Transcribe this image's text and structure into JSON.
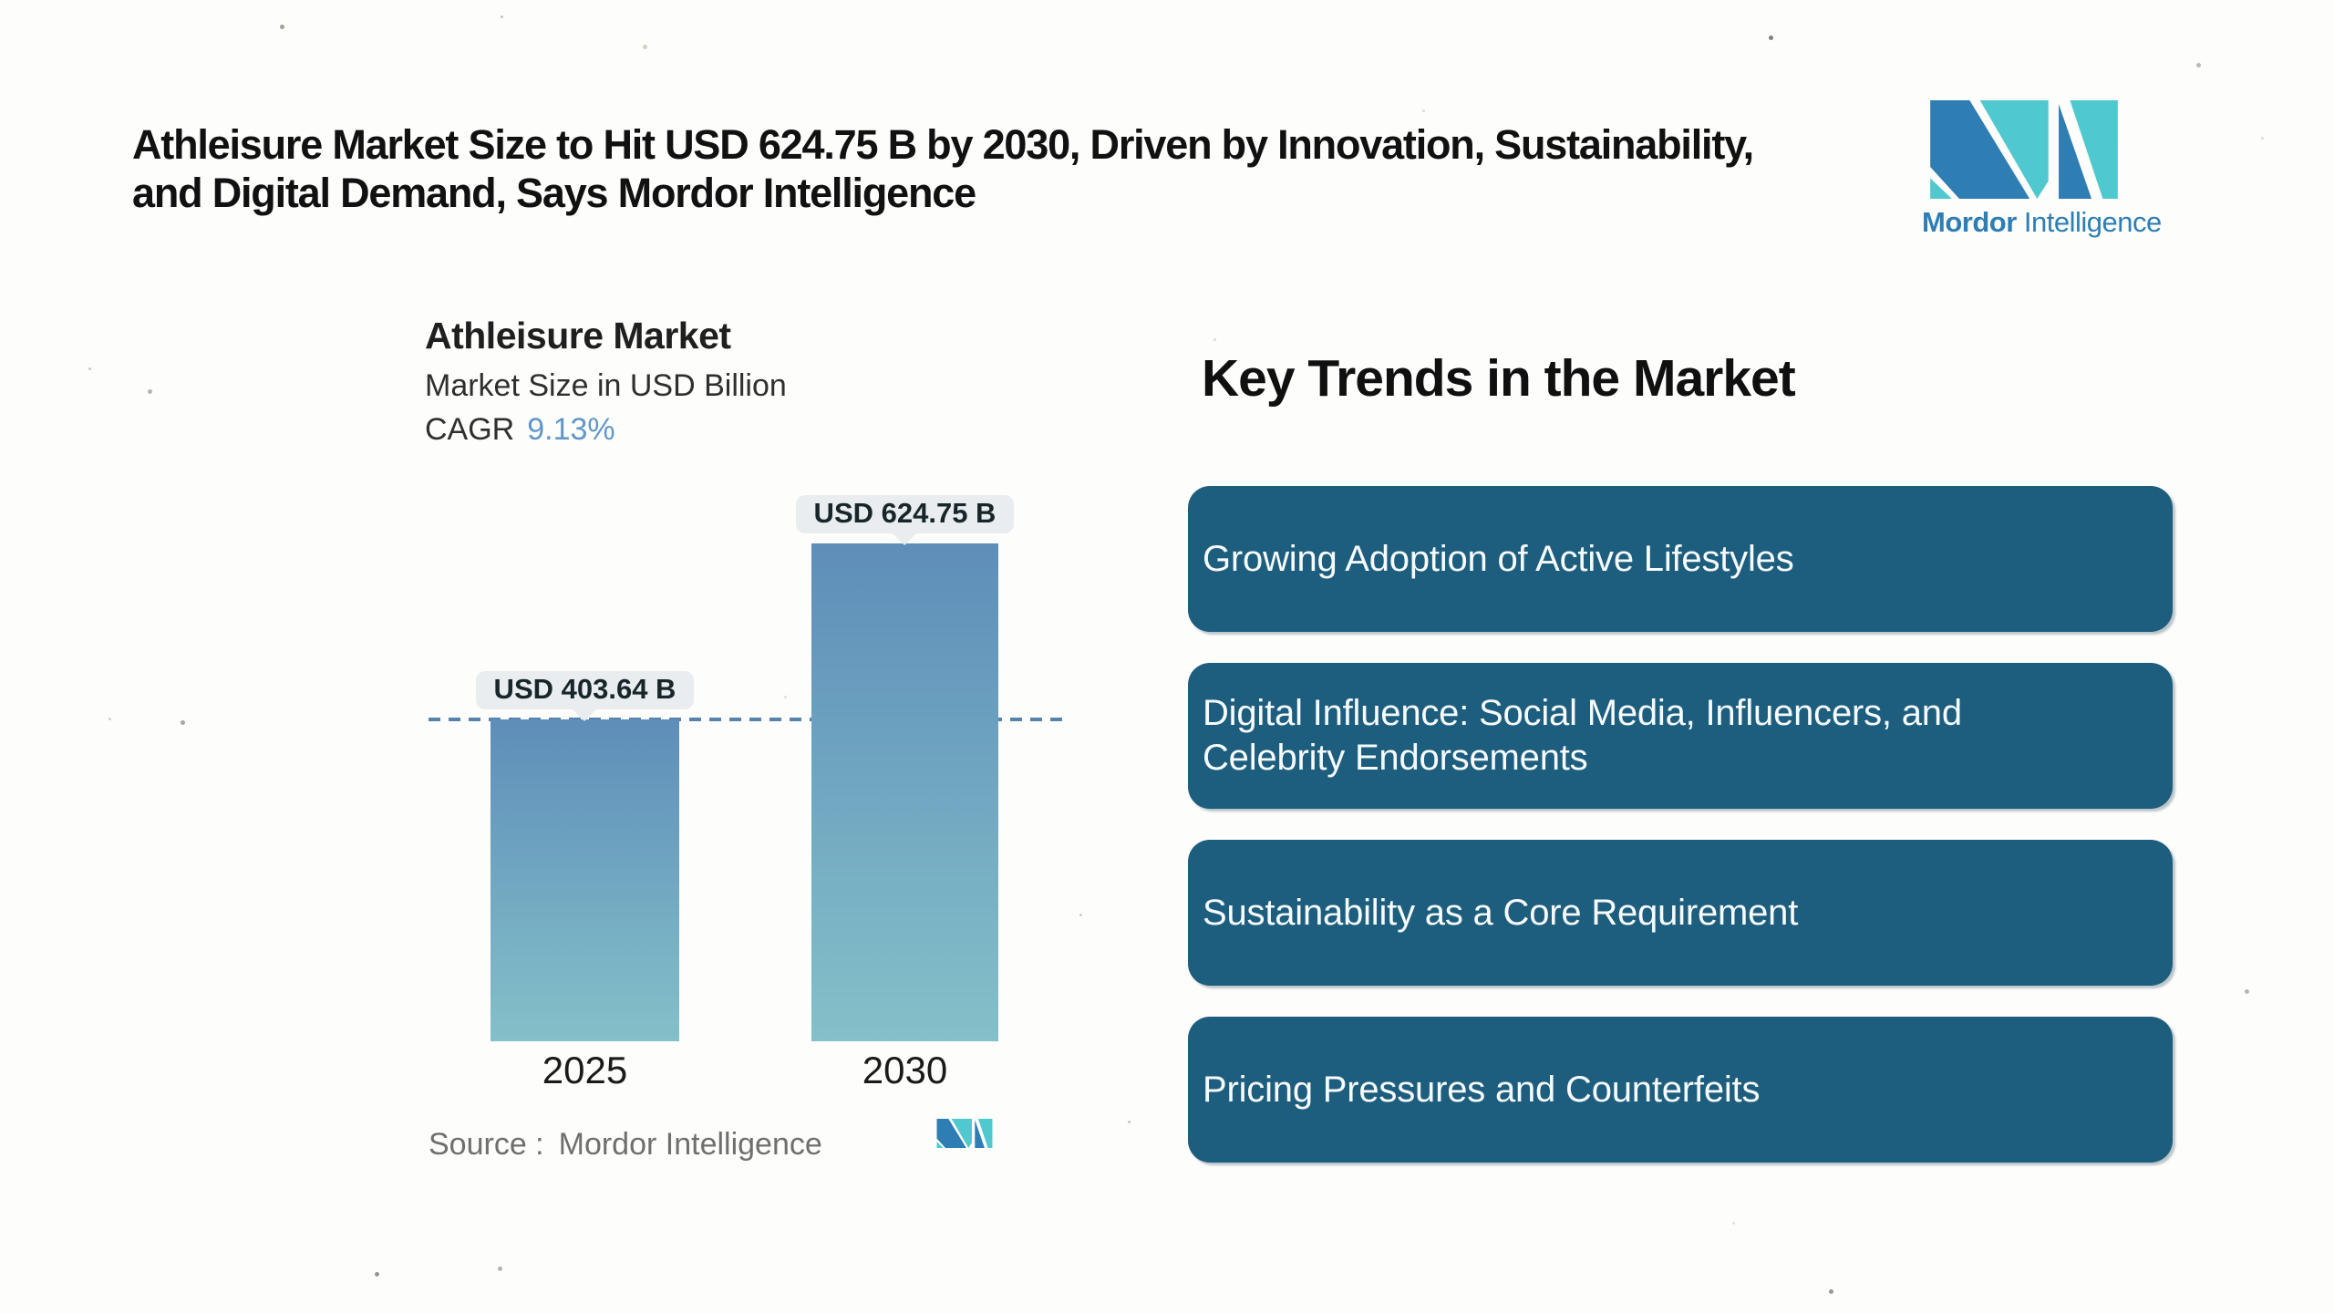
{
  "header": {
    "title_line1": "Athleisure Market Size to Hit USD 624.75 B by 2030, Driven by Innovation, Sustainability,",
    "title_line2": "and Digital Demand, Says Mordor Intelligence"
  },
  "brand": {
    "name_bold": "Mordor",
    "name_regular": "Intelligence",
    "blue": "#2e7eb4",
    "teal": "#4fc9cf"
  },
  "chart": {
    "title": "Athleisure Market",
    "subtitle": "Market Size in USD Billion",
    "cagr_label": "CAGR",
    "cagr_value": "9.13%",
    "cagr_value_color": "#6197c7",
    "source_label": "Source :",
    "source_value": "Mordor Intelligence"
  },
  "chart_data": {
    "type": "bar",
    "categories": [
      "2025",
      "2030"
    ],
    "values": [
      403.64,
      624.75
    ],
    "value_labels": [
      "USD 403.64 B",
      "USD 624.75 B"
    ],
    "title": "Athleisure Market",
    "xlabel": "",
    "ylabel": "Market Size in USD Billion",
    "cagr": "9.13%",
    "ylim": [
      0,
      624.75
    ],
    "grid": false,
    "legend": false,
    "reference_line_at": 403.64,
    "reference_line_style": "dashed",
    "bar_gradient_top": "#5e8eb9",
    "bar_gradient_bottom": "#84c0c9",
    "label_bubble_bg": "#e9edef",
    "label_bubble_text": "#17262b"
  },
  "trends": {
    "heading": "Key Trends in the Market",
    "card_color": "#1d5e7e",
    "items": [
      "Growing Adoption of Active Lifestyles",
      "Digital Influence: Social Media, Influencers, and Celebrity Endorsements",
      "Sustainability as a Core Requirement",
      "Pricing Pressures and Counterfeits"
    ]
  }
}
